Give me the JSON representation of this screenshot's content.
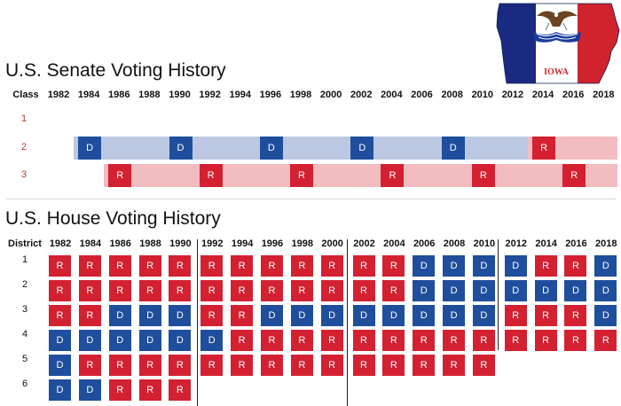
{
  "senate": {
    "title": "U.S. Senate Voting History",
    "class_header": "Class",
    "years": [
      "1982",
      "1984",
      "1986",
      "1988",
      "1990",
      "1992",
      "1994",
      "1996",
      "1998",
      "2000",
      "2002",
      "2004",
      "2006",
      "2008",
      "2010",
      "2012",
      "2014",
      "2016",
      "2018"
    ],
    "rows": [
      {
        "label": "1",
        "segments": [],
        "elections": []
      },
      {
        "label": "2",
        "segments": [
          {
            "party": "D",
            "from": "1984",
            "to": "2012"
          },
          {
            "party": "R",
            "from": "2014",
            "to": "2018"
          }
        ],
        "elections": [
          {
            "year": "1984",
            "party": "D"
          },
          {
            "year": "1990",
            "party": "D"
          },
          {
            "year": "1996",
            "party": "D"
          },
          {
            "year": "2002",
            "party": "D"
          },
          {
            "year": "2008",
            "party": "D"
          },
          {
            "year": "2014",
            "party": "R"
          }
        ]
      },
      {
        "label": "3",
        "segments": [
          {
            "party": "R",
            "from": "1986",
            "to": "2018"
          }
        ],
        "elections": [
          {
            "year": "1986",
            "party": "R"
          },
          {
            "year": "1992",
            "party": "R"
          },
          {
            "year": "1998",
            "party": "R"
          },
          {
            "year": "2004",
            "party": "R"
          },
          {
            "year": "2010",
            "party": "R"
          },
          {
            "year": "2016",
            "party": "R"
          }
        ]
      }
    ]
  },
  "house": {
    "title": "U.S. House Voting History",
    "district_header": "District",
    "years": [
      "1982",
      "1984",
      "1986",
      "1988",
      "1990",
      "1992",
      "1994",
      "1996",
      "1998",
      "2000",
      "2002",
      "2004",
      "2006",
      "2008",
      "2010",
      "2012",
      "2014",
      "2016",
      "2018"
    ],
    "districts": [
      {
        "label": "1",
        "results": [
          "R",
          "R",
          "R",
          "R",
          "R",
          "R",
          "R",
          "R",
          "R",
          "R",
          "R",
          "R",
          "D",
          "D",
          "D",
          "D",
          "R",
          "R",
          "D"
        ]
      },
      {
        "label": "2",
        "results": [
          "R",
          "R",
          "R",
          "R",
          "R",
          "R",
          "R",
          "R",
          "R",
          "R",
          "R",
          "R",
          "D",
          "D",
          "D",
          "D",
          "D",
          "D",
          "D"
        ]
      },
      {
        "label": "3",
        "results": [
          "R",
          "R",
          "D",
          "D",
          "D",
          "R",
          "R",
          "D",
          "D",
          "D",
          "D",
          "D",
          "D",
          "D",
          "D",
          "R",
          "R",
          "R",
          "D"
        ]
      },
      {
        "label": "4",
        "results": [
          "D",
          "D",
          "D",
          "D",
          "D",
          "D",
          "R",
          "R",
          "R",
          "R",
          "R",
          "R",
          "R",
          "R",
          "R",
          "R",
          "R",
          "R",
          "R"
        ]
      },
      {
        "label": "5",
        "results": [
          "D",
          "R",
          "R",
          "R",
          "R",
          "R",
          "R",
          "R",
          "R",
          "R",
          "R",
          "R",
          "R",
          "R",
          "R"
        ]
      },
      {
        "label": "6",
        "results": [
          "D",
          "D",
          "R",
          "R",
          "R"
        ]
      }
    ]
  },
  "flag": {
    "state_name": "IOWA",
    "motto": "OUR LIBERTIES WE PRIZE AND OUR RIGHTS WE WILL MAINTAIN",
    "colors": {
      "blue": "#1a2a80",
      "white": "#ffffff",
      "red": "#d0232d"
    }
  },
  "colors": {
    "democrat": "#1f4e9c",
    "republican": "#d32131",
    "democrat_light": "#bcc8e2",
    "republican_light": "#f2bcc1"
  }
}
